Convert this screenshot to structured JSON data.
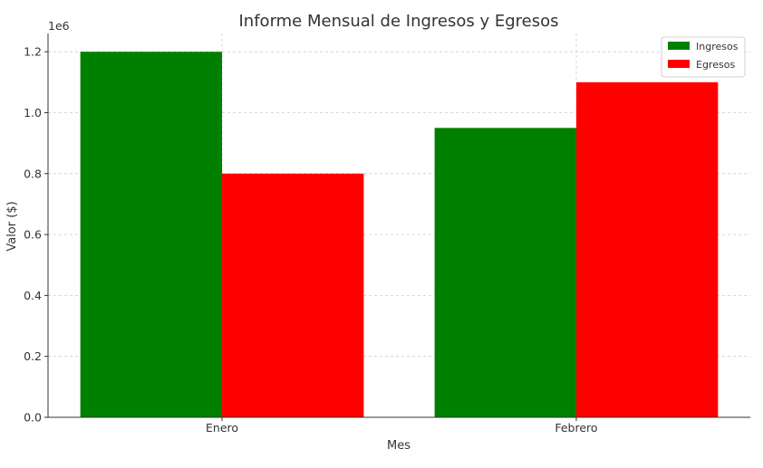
{
  "chart_data": {
    "type": "bar",
    "title": "Informe Mensual de Ingresos y Egresos",
    "xlabel": "Mes",
    "ylabel": "Valor ($)",
    "y_offset_label": "1e6",
    "categories": [
      "Enero",
      "Febrero"
    ],
    "series": [
      {
        "name": "Ingresos",
        "color": "#008000",
        "values": [
          1200000,
          950000
        ]
      },
      {
        "name": "Egresos",
        "color": "#ff0000",
        "values": [
          800000,
          1100000
        ]
      }
    ],
    "ylim": [
      0,
      1260000
    ],
    "yticks": [
      0,
      200000,
      400000,
      600000,
      800000,
      1000000,
      1200000
    ],
    "ytick_labels": [
      "0.0",
      "0.2",
      "0.4",
      "0.6",
      "0.8",
      "1.0",
      "1.2"
    ],
    "grid": true,
    "legend_position": "top-right"
  }
}
